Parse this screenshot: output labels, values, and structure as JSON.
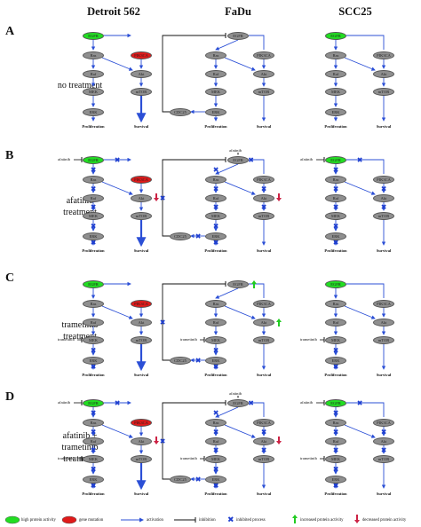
{
  "columns": [
    "Detroit 562",
    "FaDu",
    "SCC25"
  ],
  "rows": [
    {
      "letter": "A",
      "label": "no treatment"
    },
    {
      "letter": "B",
      "label": "afatinib\ntreatment"
    },
    {
      "letter": "C",
      "label": "trametinib\ntreatment"
    },
    {
      "letter": "D",
      "label": "afatinib +\ntrametinib\ntreatment"
    }
  ],
  "nodes": {
    "egfr": "EGFR",
    "ras": "Ras",
    "raf": "Raf",
    "mek": "MEK",
    "erk": "ERK",
    "pik3ca": "PIK3CA",
    "akt": "Akt",
    "mtor": "mTOR",
    "cdc25": "CDC25"
  },
  "outcomes": {
    "proliferation": "Proliferation",
    "survival": "Survival"
  },
  "drugs": {
    "afatinib": "afatinib",
    "trametinib": "trametinib"
  },
  "legend": {
    "high": "high protein activity",
    "mutation": "gene mutation",
    "activation": "activation",
    "inhibition": "inhibition",
    "inhibited": "inhibited process",
    "increased": "increased protein activity",
    "decreased": "decreased protein activity"
  },
  "colors": {
    "activation": "#2b4fd6",
    "inhibited": "#1f3fd0",
    "high": "#22dd22",
    "mutation": "#e01a1a",
    "increased": "#22cc22",
    "decreased": "#cc2244"
  }
}
